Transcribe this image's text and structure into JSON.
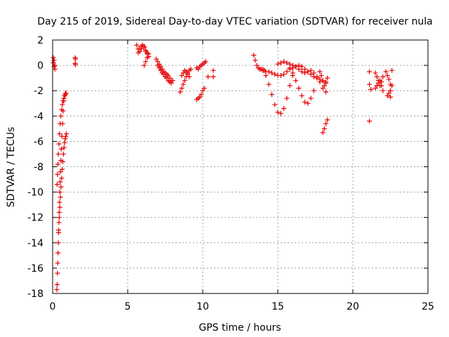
{
  "chart_data": {
    "type": "scatter",
    "title": "Day 215 of 2019, Sidereal Day-to-day VTEC variation (SDTVAR) for receiver nula",
    "xlabel": "GPS time / hours",
    "ylabel": "SDTVAR / TECUs",
    "xlim": [
      0,
      25
    ],
    "ylim": [
      -18,
      2
    ],
    "xticks": [
      0,
      5,
      10,
      15,
      20,
      25
    ],
    "yticks": [
      -18,
      -16,
      -14,
      -12,
      -10,
      -8,
      -6,
      -4,
      -2,
      0,
      2
    ],
    "grid": true,
    "marker": "+",
    "color": "#e60000",
    "segments": [
      {
        "x": [
          0.05,
          0.05,
          0.1,
          0.1,
          0.15,
          0.15
        ],
        "y": [
          0.6,
          0.2,
          -0.1,
          0.4,
          0.0,
          -0.3
        ]
      },
      {
        "x": [
          0.28,
          0.3,
          0.32,
          0.34,
          0.36,
          0.38,
          0.4,
          0.42,
          0.44,
          0.46,
          0.48,
          0.5,
          0.52,
          0.55,
          0.58,
          0.62,
          0.66,
          0.7,
          0.75,
          0.8,
          0.85
        ],
        "y": [
          -17.7,
          -17.3,
          -16.4,
          -15.6,
          -14.8,
          -14.0,
          -13.2,
          -12.4,
          -11.6,
          -10.8,
          -10.0,
          -9.2,
          -8.4,
          -7.5,
          -6.6,
          -5.6,
          -4.6,
          -3.6,
          -2.8,
          -2.4,
          -2.2
        ]
      },
      {
        "x": [
          0.3,
          0.32,
          0.35,
          0.38,
          0.42,
          0.46,
          0.5,
          0.55,
          0.6,
          0.65,
          0.7,
          0.75,
          0.8,
          0.85,
          0.9
        ],
        "y": [
          -9.4,
          -8.6,
          -7.8,
          -7.0,
          -6.2,
          -5.4,
          -4.6,
          -4.0,
          -3.5,
          -3.1,
          -2.8,
          -2.6,
          -2.4,
          -2.3,
          -2.2
        ]
      },
      {
        "x": [
          0.4,
          0.44,
          0.48,
          0.52,
          0.56,
          0.6,
          0.64,
          0.68,
          0.72,
          0.76,
          0.8,
          0.84,
          0.88,
          0.92
        ],
        "y": [
          -13.0,
          -12.0,
          -11.2,
          -10.4,
          -9.6,
          -8.9,
          -8.2,
          -7.6,
          -7.0,
          -6.5,
          -6.1,
          -5.8,
          -5.6,
          -5.4
        ]
      },
      {
        "x": [
          1.5,
          1.5,
          1.52,
          1.52
        ],
        "y": [
          0.6,
          0.15,
          0.05,
          0.5
        ]
      },
      {
        "x": [
          5.6,
          5.7,
          5.8,
          5.9,
          6.0,
          6.1,
          6.2,
          6.3
        ],
        "y": [
          1.6,
          1.3,
          1.1,
          1.3,
          1.6,
          1.5,
          1.2,
          1.0
        ]
      },
      {
        "x": [
          5.7,
          5.8,
          5.9,
          6.0,
          6.1,
          6.2,
          6.3,
          6.4
        ],
        "y": [
          1.0,
          1.3,
          1.5,
          1.6,
          1.4,
          1.1,
          0.9,
          0.7
        ]
      },
      {
        "x": [
          6.1,
          6.2,
          6.3,
          6.4
        ],
        "y": [
          0.0,
          0.3,
          0.6,
          0.9
        ]
      },
      {
        "x": [
          6.9,
          7.0,
          7.1,
          7.2,
          7.3,
          7.4,
          7.5,
          7.6,
          7.7,
          7.8,
          7.9,
          8.0
        ],
        "y": [
          0.5,
          0.3,
          0.1,
          -0.1,
          -0.3,
          -0.5,
          -0.6,
          -0.7,
          -0.8,
          -1.0,
          -1.2,
          -1.2
        ]
      },
      {
        "x": [
          7.0,
          7.1,
          7.2,
          7.3,
          7.4,
          7.5,
          7.6,
          7.7,
          7.8,
          7.9
        ],
        "y": [
          0.0,
          -0.2,
          -0.4,
          -0.6,
          -0.7,
          -0.9,
          -1.0,
          -1.2,
          -1.3,
          -1.4
        ]
      },
      {
        "x": [
          8.5,
          8.6,
          8.7,
          8.8,
          8.9,
          9.0,
          9.1,
          9.2
        ],
        "y": [
          -2.1,
          -1.8,
          -1.5,
          -1.2,
          -0.9,
          -0.6,
          -0.4,
          -0.3
        ]
      },
      {
        "x": [
          8.6,
          8.7,
          8.8,
          8.9,
          9.0,
          9.1
        ],
        "y": [
          -0.8,
          -0.6,
          -0.4,
          -0.5,
          -0.7,
          -0.9
        ]
      },
      {
        "x": [
          9.6,
          9.7,
          9.8,
          9.9,
          10.0,
          10.1,
          10.2
        ],
        "y": [
          -0.2,
          -0.3,
          -0.1,
          0.0,
          0.1,
          0.2,
          0.3
        ]
      },
      {
        "x": [
          9.6,
          9.7,
          9.8,
          9.9,
          10.0,
          10.1
        ],
        "y": [
          -2.7,
          -2.6,
          -2.5,
          -2.3,
          -2.0,
          -1.8
        ]
      },
      {
        "x": [
          10.35,
          10.7,
          10.7
        ],
        "y": [
          -0.9,
          -0.4,
          -0.9
        ]
      },
      {
        "x": [
          13.4,
          13.5,
          13.6,
          13.7,
          13.8,
          13.9,
          14.0,
          14.1,
          14.2,
          14.4,
          14.6,
          14.8,
          15.0,
          15.2,
          15.4,
          15.6,
          15.8,
          16.0,
          16.2,
          16.4,
          16.6,
          16.8,
          17.0,
          17.2,
          17.4,
          17.6,
          17.8,
          18.0,
          18.2
        ],
        "y": [
          0.8,
          0.4,
          0.0,
          -0.2,
          -0.3,
          -0.3,
          -0.4,
          -0.4,
          -0.5,
          -0.5,
          -0.6,
          -0.7,
          -0.8,
          -0.8,
          -0.7,
          -0.5,
          -0.3,
          -0.2,
          -0.1,
          0.0,
          -0.1,
          -0.3,
          -0.5,
          -0.7,
          -0.9,
          -1.0,
          -1.1,
          -1.2,
          -1.3
        ]
      },
      {
        "x": [
          14.0,
          14.2,
          14.4,
          14.6,
          14.8,
          15.0,
          15.2,
          15.4,
          15.6,
          15.8,
          16.0
        ],
        "y": [
          -0.3,
          -0.8,
          -1.5,
          -2.3,
          -3.1,
          -3.7,
          -3.8,
          -3.4,
          -2.6,
          -1.6,
          -0.8
        ]
      },
      {
        "x": [
          15.8,
          16.0,
          16.2,
          16.4,
          16.6,
          16.8,
          17.0,
          17.2,
          17.4
        ],
        "y": [
          -0.2,
          -0.6,
          -1.2,
          -1.8,
          -2.4,
          -2.9,
          -3.0,
          -2.6,
          -2.0
        ]
      },
      {
        "x": [
          15.0,
          15.2,
          15.4,
          15.6,
          15.8,
          16.0,
          16.2,
          16.4,
          16.6,
          16.8,
          17.0,
          17.2,
          17.4,
          17.6,
          17.8,
          18.0,
          18.2
        ],
        "y": [
          0.1,
          0.2,
          0.3,
          0.2,
          0.1,
          0.0,
          -0.1,
          -0.3,
          -0.5,
          -0.6,
          -0.5,
          -0.4,
          -0.6,
          -0.9,
          -1.3,
          -1.8,
          -2.1
        ]
      },
      {
        "x": [
          17.8,
          17.9,
          18.0,
          18.1,
          18.2,
          18.3
        ],
        "y": [
          -0.5,
          -0.8,
          -1.2,
          -1.6,
          -1.4,
          -1.0
        ]
      },
      {
        "x": [
          18.0,
          18.1,
          18.2,
          18.3
        ],
        "y": [
          -5.3,
          -5.0,
          -4.6,
          -4.3
        ]
      },
      {
        "x": [
          21.1,
          21.1,
          21.1,
          21.2
        ],
        "y": [
          -0.5,
          -1.5,
          -4.4,
          -1.9
        ]
      },
      {
        "x": [
          21.5,
          21.6,
          21.7,
          21.8,
          21.9,
          22.0
        ],
        "y": [
          -0.6,
          -0.9,
          -1.2,
          -1.6,
          -1.3,
          -0.9
        ]
      },
      {
        "x": [
          21.5,
          21.6,
          21.7,
          21.8,
          21.9,
          22.0
        ],
        "y": [
          -1.8,
          -1.6,
          -1.4,
          -1.2,
          -1.6,
          -2.0
        ]
      },
      {
        "x": [
          22.2,
          22.3,
          22.4,
          22.5,
          22.5,
          22.5,
          22.6
        ],
        "y": [
          -0.5,
          -0.8,
          -1.1,
          -1.5,
          -2.0,
          -2.5,
          -0.4
        ]
      },
      {
        "x": [
          22.3,
          22.4,
          22.5,
          22.6
        ],
        "y": [
          -2.4,
          -2.2,
          -2.0,
          -1.6
        ]
      }
    ]
  }
}
